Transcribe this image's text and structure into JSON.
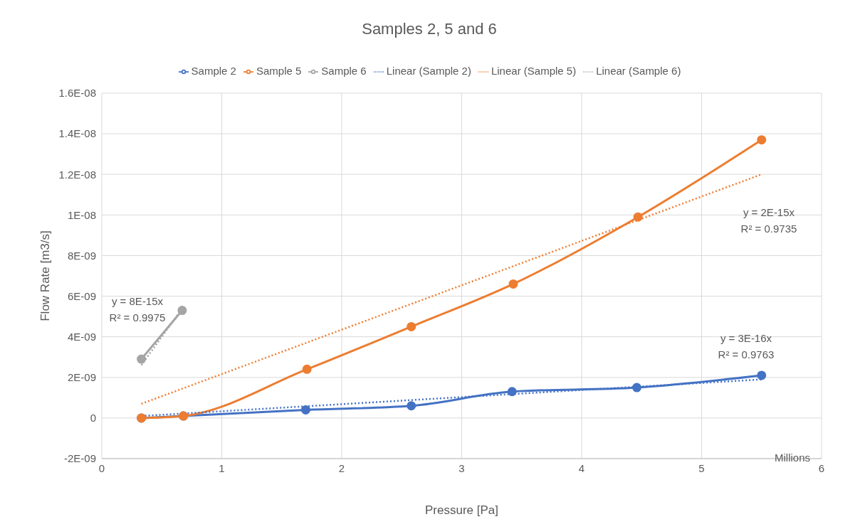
{
  "chart_data": {
    "type": "line",
    "title": "Samples 2, 5 and 6",
    "xlabel": "Pressure [Pa]",
    "ylabel": "Flow Rate [m3/s]",
    "series": [
      {
        "name": "Sample 2",
        "color": "#4472c4",
        "x": [
          0.33,
          0.68,
          1.7,
          2.58,
          3.42,
          4.46,
          5.5
        ],
        "values": [
          0,
          1e-10,
          4e-10,
          6e-10,
          1.3e-09,
          1.5e-09,
          2.1e-09
        ]
      },
      {
        "name": "Sample 5",
        "color": "#ed7d31",
        "x": [
          0.33,
          0.68,
          1.71,
          2.58,
          3.43,
          4.47,
          5.5
        ],
        "values": [
          0,
          1e-10,
          2.4e-09,
          4.5e-09,
          6.6e-09,
          9.9e-09,
          1.37e-08
        ]
      },
      {
        "name": "Sample 6",
        "color": "#a5a5a5",
        "x": [
          0.33,
          0.67
        ],
        "values": [
          2.9e-09,
          5.3e-09
        ]
      },
      {
        "name": "Linear (Sample 2)",
        "color": "#4472c4",
        "type": "line",
        "line_style": "dotted",
        "marker": "none",
        "x": [
          0.33,
          5.5
        ],
        "values": [
          1e-10,
          1.9e-09
        ]
      },
      {
        "name": "Linear (Sample 5)",
        "color": "#ed7d31",
        "type": "line",
        "line_style": "dotted",
        "marker": "none",
        "x": [
          0.33,
          5.5
        ],
        "values": [
          7e-10,
          1.2e-08
        ]
      },
      {
        "name": "Linear (Sample 6)",
        "color": "#a5a5a5",
        "type": "line",
        "line_style": "dotted",
        "marker": "none",
        "x": [
          0.33,
          0.67
        ],
        "values": [
          2.6e-09,
          5.4e-09
        ]
      }
    ],
    "marker": "circle",
    "line_style": "solid",
    "xlim": [
      0,
      6
    ],
    "xticks": [
      0,
      1,
      2,
      3,
      4,
      5,
      6
    ],
    "ylim": [
      -2e-09,
      1.6e-08
    ],
    "yticks": [
      {
        "value": -2e-09,
        "label": "-2E-09"
      },
      0,
      {
        "value": 2e-09,
        "label": "2E-09"
      },
      {
        "value": 4e-09,
        "label": "4E-09"
      },
      {
        "value": 6e-09,
        "label": "6E-09"
      },
      {
        "value": 8e-09,
        "label": "8E-09"
      },
      {
        "value": 1e-08,
        "label": "1E-08"
      },
      {
        "value": 1.2e-08,
        "label": "1.2E-08"
      },
      {
        "value": 1.4e-08,
        "label": "1.4E-08"
      },
      {
        "value": 1.6e-08,
        "label": "1.6E-08"
      }
    ],
    "grid": true,
    "legend": "top",
    "annotations": [
      "y = 8E-15x",
      "R² = 0.9975",
      "y = 2E-15x",
      "R² = 0.9735",
      "y = 3E-16x",
      "R² = 0.9763",
      "Millions"
    ]
  }
}
